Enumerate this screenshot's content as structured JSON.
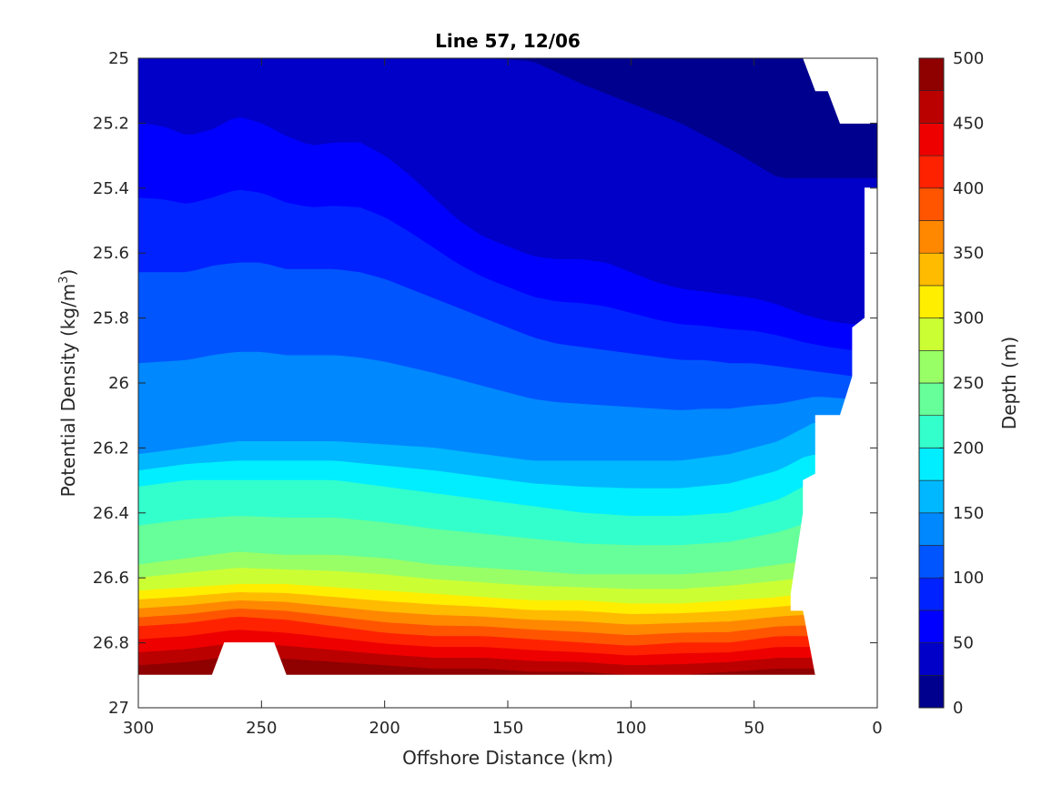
{
  "chart_data": {
    "type": "contourf",
    "title": "Line 57, 12/06",
    "xlabel": "Offshore Distance (km)",
    "ylabel_main": "Potential Density (kg/m",
    "ylabel_sup": "3",
    "ylabel_close": ")",
    "colorbar_label": "Depth (m)",
    "xlim": [
      300,
      0
    ],
    "ylim": [
      25,
      27
    ],
    "x_reversed": true,
    "y_reversed": true,
    "xticks": [
      300,
      250,
      200,
      150,
      100,
      50,
      0
    ],
    "yticks": [
      25,
      25.2,
      25.4,
      25.6,
      25.8,
      26,
      26.2,
      26.4,
      26.6,
      26.8,
      27
    ],
    "ytick_labels": [
      "25",
      "25.2",
      "25.4",
      "25.6",
      "25.8",
      "26",
      "26.2",
      "26.4",
      "26.6",
      "26.8",
      "27"
    ],
    "colorbar_ticks": [
      0,
      50,
      100,
      150,
      200,
      250,
      300,
      350,
      400,
      450,
      500
    ],
    "contour_levels": [
      0,
      25,
      50,
      75,
      100,
      125,
      150,
      175,
      200,
      225,
      250,
      275,
      300,
      325,
      350,
      375,
      400,
      425,
      450,
      475,
      500
    ],
    "colormap": "jet",
    "level_colors": [
      "#00008F",
      "#0000C8",
      "#0000FF",
      "#0022FF",
      "#0055FF",
      "#0088FF",
      "#00B8FF",
      "#00EEFF",
      "#33FFCC",
      "#66FF99",
      "#99FF66",
      "#CCFF33",
      "#FFEE00",
      "#FFBB00",
      "#FF8800",
      "#FF5500",
      "#FF2200",
      "#EE0000",
      "#BB0000",
      "#8F0000"
    ],
    "contour_lines": [
      {
        "level": 25,
        "x": [
          300,
          280,
          260,
          240,
          220,
          200,
          180,
          160,
          140,
          120,
          100,
          80,
          60,
          40
        ],
        "y": [
          25,
          25,
          25,
          25,
          25,
          25,
          25,
          25,
          25.01,
          25.08,
          25.14,
          25.2,
          25.28,
          25.37
        ]
      },
      {
        "level": 50,
        "x": [
          300,
          290,
          280,
          270,
          260,
          250,
          240,
          230,
          220,
          210,
          200,
          190,
          180,
          170,
          160,
          150,
          140,
          130,
          120,
          110,
          100,
          90,
          80,
          70,
          60,
          50,
          40,
          30,
          20,
          10
        ],
        "y": [
          25.2,
          25.21,
          25.24,
          25.22,
          25.18,
          25.2,
          25.24,
          25.27,
          25.26,
          25.26,
          25.3,
          25.36,
          25.43,
          25.5,
          25.55,
          25.58,
          25.61,
          25.62,
          25.62,
          25.63,
          25.66,
          25.69,
          25.71,
          25.72,
          25.73,
          25.74,
          25.76,
          25.79,
          25.81,
          25.82
        ]
      },
      {
        "level": 100,
        "x": [
          300,
          290,
          280,
          270,
          260,
          250,
          240,
          230,
          220,
          210,
          200,
          190,
          180,
          170,
          160,
          150,
          140,
          130,
          120,
          110,
          100,
          90,
          80,
          70,
          60,
          50,
          40,
          30,
          20,
          10
        ],
        "y": [
          25.66,
          25.66,
          25.66,
          25.64,
          25.63,
          25.63,
          25.65,
          25.65,
          25.65,
          25.66,
          25.68,
          25.71,
          25.74,
          25.77,
          25.8,
          25.83,
          25.86,
          25.88,
          25.89,
          25.9,
          25.91,
          25.92,
          25.93,
          25.93,
          25.94,
          25.94,
          25.95,
          25.96,
          25.97,
          25.98
        ]
      },
      {
        "level": 150,
        "x": [
          300,
          280,
          260,
          240,
          220,
          200,
          180,
          160,
          140,
          120,
          100,
          80,
          60,
          40,
          25
        ],
        "y": [
          26.22,
          26.2,
          26.18,
          26.18,
          26.18,
          26.19,
          26.2,
          26.22,
          26.24,
          26.24,
          26.24,
          26.24,
          26.22,
          26.18,
          26.12
        ]
      },
      {
        "level": 200,
        "x": [
          300,
          280,
          260,
          240,
          220,
          200,
          180,
          160,
          140,
          120,
          100,
          80,
          60,
          40,
          30
        ],
        "y": [
          26.32,
          26.3,
          26.3,
          26.3,
          26.3,
          26.32,
          26.34,
          26.36,
          26.38,
          26.4,
          26.41,
          26.41,
          26.4,
          26.36,
          26.32
        ]
      },
      {
        "level": 250,
        "x": [
          300,
          280,
          260,
          240,
          220,
          200,
          180,
          160,
          140,
          120,
          100,
          80,
          60,
          40,
          30
        ],
        "y": [
          26.56,
          26.54,
          26.52,
          26.53,
          26.53,
          26.54,
          26.56,
          26.57,
          26.58,
          26.59,
          26.59,
          26.59,
          26.58,
          26.56,
          26.55
        ]
      },
      {
        "level": 300,
        "x": [
          300,
          280,
          260,
          240,
          220,
          200,
          180,
          160,
          140,
          120,
          100,
          80,
          60,
          40,
          30
        ],
        "y": [
          26.64,
          26.63,
          26.62,
          26.62,
          26.63,
          26.64,
          26.65,
          26.66,
          26.67,
          26.67,
          26.68,
          26.68,
          26.67,
          26.66,
          26.65
        ]
      },
      {
        "level": 400,
        "x": [
          300,
          280,
          260,
          240,
          220,
          200,
          180,
          160,
          140,
          120,
          100,
          80,
          60,
          40,
          35
        ],
        "y": [
          26.75,
          26.74,
          26.72,
          26.73,
          26.75,
          26.77,
          26.78,
          26.78,
          26.79,
          26.8,
          26.81,
          26.8,
          26.8,
          26.78,
          26.78
        ]
      },
      {
        "level": 475,
        "x": [
          300,
          280,
          260,
          240,
          220,
          200,
          180,
          160,
          140,
          120,
          100,
          80,
          60,
          40,
          35
        ],
        "y": [
          26.87,
          26.86,
          26.84,
          26.85,
          26.86,
          26.87,
          26.88,
          26.88,
          26.89,
          26.89,
          26.9,
          26.9,
          26.89,
          26.88,
          26.88
        ]
      }
    ],
    "missing_regions": [
      {
        "name": "top-right-gap",
        "x": [
          30,
          0,
          0,
          5,
          15,
          20,
          25
        ],
        "y": [
          25,
          25,
          25.2,
          25.2,
          25.2,
          25.1,
          25.1
        ]
      },
      {
        "name": "right-side-gap",
        "x": [
          5,
          0,
          0,
          10,
          15,
          25,
          30,
          35,
          35,
          30,
          30,
          25,
          25,
          15,
          10,
          10,
          5
        ],
        "y": [
          25.4,
          25.4,
          27,
          27,
          26.9,
          26.9,
          26.7,
          26.7,
          26.65,
          26.4,
          26.3,
          26.28,
          26.1,
          26.1,
          25.98,
          25.83,
          25.8
        ]
      },
      {
        "name": "bottom-below-data",
        "x": [
          300,
          0,
          0,
          300
        ],
        "y": [
          26.9,
          26.9,
          27,
          27
        ]
      },
      {
        "name": "notch",
        "x": [
          270,
          265,
          245,
          240
        ],
        "y": [
          26.9,
          26.8,
          26.8,
          26.9
        ]
      }
    ]
  }
}
